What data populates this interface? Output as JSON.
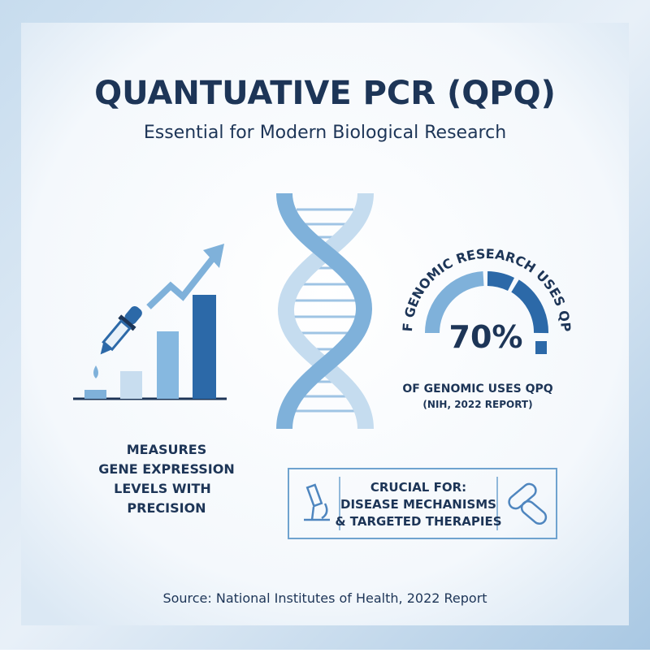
{
  "header": {
    "title": "QUANTUATIVE PCR (QPQ)",
    "subtitle": "Essential for Modern Biological Research"
  },
  "left_panel": {
    "lines": [
      "MEASURES",
      "GENE EXPRESSION",
      "LEVELS WITH",
      "PRECISION"
    ]
  },
  "gauge": {
    "arc_text": "OF GENOMIC RESEARCH USES QPQ",
    "value_text": "70%",
    "caption": [
      "OF GENOMIC USES QPQ",
      "(NIH, 2022 REPORT)"
    ]
  },
  "callout": {
    "lines": [
      "CRUCIAL FOR:",
      "DISEASE MECHANISMS",
      "& TARGETED THERAPIES"
    ]
  },
  "footer": {
    "source": "Source: National Institutes of Health, 2022 Report"
  }
}
